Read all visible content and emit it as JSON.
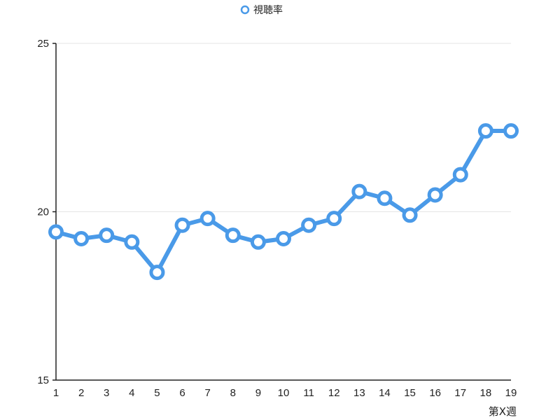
{
  "chart_data": {
    "type": "line",
    "x": [
      1,
      2,
      3,
      4,
      5,
      6,
      7,
      8,
      9,
      10,
      11,
      12,
      13,
      14,
      15,
      16,
      17,
      18,
      19
    ],
    "series": [
      {
        "name": "視聴率",
        "values": [
          19.4,
          19.2,
          19.3,
          19.1,
          18.2,
          19.6,
          19.8,
          19.3,
          19.1,
          19.2,
          19.6,
          19.8,
          20.6,
          20.4,
          19.9,
          20.5,
          21.1,
          22.4,
          22.4
        ]
      }
    ],
    "xlabel": "第X週",
    "ylabel": "",
    "ylim": [
      15,
      25
    ],
    "yticks": [
      15,
      20,
      25
    ],
    "grid": true,
    "legend_position": "top-center",
    "line_color": "#4a9ae8",
    "marker": "hollow-circle"
  }
}
